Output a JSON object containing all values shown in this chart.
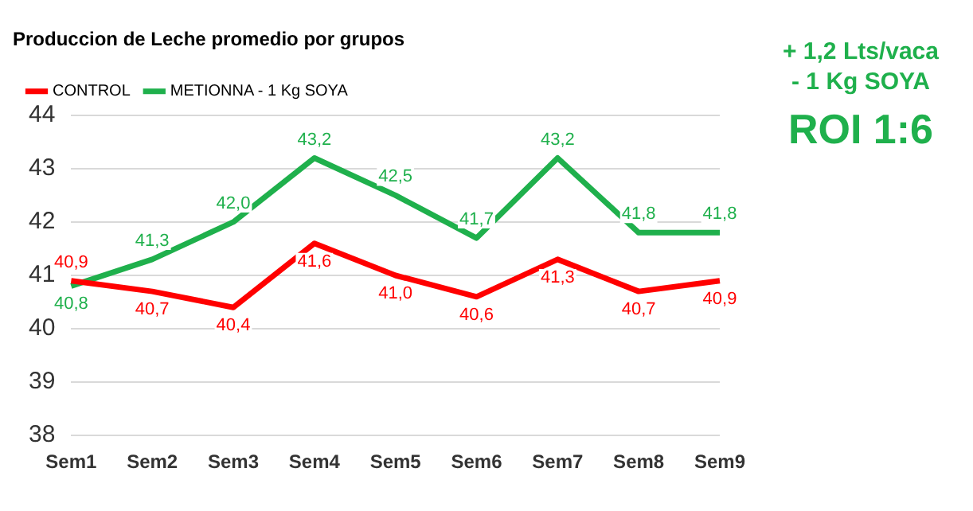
{
  "chart_data": {
    "type": "line",
    "title": "Produccion de Leche promedio por grupos",
    "categories": [
      "Sem1",
      "Sem2",
      "Sem3",
      "Sem4",
      "Sem5",
      "Sem6",
      "Sem7",
      "Sem8",
      "Sem9"
    ],
    "series": [
      {
        "name": "CONTROL",
        "color": "#ff0000",
        "values": [
          40.9,
          40.7,
          40.4,
          41.6,
          41.0,
          40.6,
          41.3,
          40.7,
          40.9
        ],
        "value_labels": [
          "40,9",
          "40,7",
          "40,4",
          "41,6",
          "41,0",
          "40,6",
          "41,3",
          "40,7",
          "40,9"
        ]
      },
      {
        "name": "METIONNA - 1 Kg SOYA",
        "color": "#1fb04c",
        "values": [
          40.8,
          41.3,
          42.0,
          43.2,
          42.5,
          41.7,
          43.2,
          41.8,
          41.8
        ],
        "value_labels": [
          "40,8",
          "41,3",
          "42,0",
          "43,2",
          "42,5",
          "41,7",
          "43,2",
          "41,8",
          "41,8"
        ]
      }
    ],
    "ylim": [
      38,
      44
    ],
    "yticks": [
      38,
      39,
      40,
      41,
      42,
      43,
      44
    ],
    "grid": "y",
    "legend": "top left",
    "marker": "none",
    "line_style": "solid",
    "annotations": [
      "+ 1,2 Lts/vaca",
      "- 1 Kg SOYA",
      "ROI 1:6"
    ]
  }
}
